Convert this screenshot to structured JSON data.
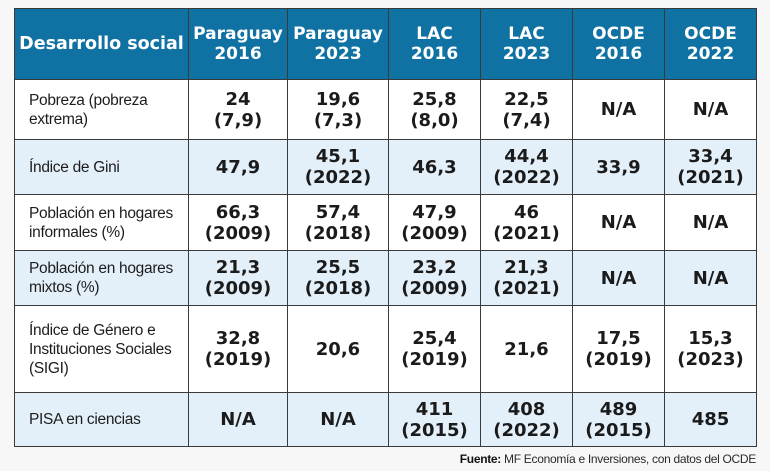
{
  "table": {
    "headers": [
      {
        "line1": "Desarrollo social",
        "line2": ""
      },
      {
        "line1": "Paraguay",
        "line2": "2016"
      },
      {
        "line1": "Paraguay",
        "line2": "2023"
      },
      {
        "line1": "LAC",
        "line2": "2016"
      },
      {
        "line1": "LAC",
        "line2": "2023"
      },
      {
        "line1": "OCDE",
        "line2": "2016"
      },
      {
        "line1": "OCDE",
        "line2": "2022"
      }
    ],
    "rows": [
      {
        "label": [
          "Pobreza (pobreza",
          "extrema)"
        ],
        "cells": [
          {
            "main": "24",
            "sub": "(7,9)"
          },
          {
            "main": "19,6",
            "sub": "(7,3)"
          },
          {
            "main": "25,8",
            "sub": "(8,0)"
          },
          {
            "main": "22,5",
            "sub": "(7,4)"
          },
          {
            "main": "N/A",
            "sub": ""
          },
          {
            "main": "N/A",
            "sub": ""
          }
        ]
      },
      {
        "label": [
          "Índice de Gini"
        ],
        "cells": [
          {
            "main": "47,9",
            "sub": ""
          },
          {
            "main": "45,1",
            "sub": "(2022)"
          },
          {
            "main": "46,3",
            "sub": ""
          },
          {
            "main": "44,4",
            "sub": "(2022)"
          },
          {
            "main": "33,9",
            "sub": ""
          },
          {
            "main": "33,4",
            "sub": "(2021)"
          }
        ]
      },
      {
        "label": [
          "Población en hogares",
          "informales (%)"
        ],
        "cells": [
          {
            "main": "66,3",
            "sub": "(2009)"
          },
          {
            "main": "57,4",
            "sub": "(2018)"
          },
          {
            "main": "47,9",
            "sub": "(2009)"
          },
          {
            "main": "46",
            "sub": "(2021)"
          },
          {
            "main": "N/A",
            "sub": ""
          },
          {
            "main": "N/A",
            "sub": ""
          }
        ]
      },
      {
        "label": [
          "Población en hogares",
          "mixtos (%)"
        ],
        "cells": [
          {
            "main": "21,3",
            "sub": "(2009)"
          },
          {
            "main": "25,5",
            "sub": "(2018)"
          },
          {
            "main": "23,2",
            "sub": "(2009)"
          },
          {
            "main": "21,3",
            "sub": "(2021)"
          },
          {
            "main": "N/A",
            "sub": ""
          },
          {
            "main": "N/A",
            "sub": ""
          }
        ]
      },
      {
        "label": [
          "Índice de Género e",
          "Instituciones Sociales",
          "(SIGI)"
        ],
        "cells": [
          {
            "main": "32,8",
            "sub": "(2019)"
          },
          {
            "main": "20,6",
            "sub": ""
          },
          {
            "main": "25,4",
            "sub": "(2019)"
          },
          {
            "main": "21,6",
            "sub": ""
          },
          {
            "main": "17,5",
            "sub": "(2019)"
          },
          {
            "main": "15,3",
            "sub": "(2023)"
          }
        ]
      },
      {
        "label": [
          "PISA en ciencias"
        ],
        "cells": [
          {
            "main": "N/A",
            "sub": ""
          },
          {
            "main": "N/A",
            "sub": ""
          },
          {
            "main": "411",
            "sub": "(2015)"
          },
          {
            "main": "408",
            "sub": "(2022)"
          },
          {
            "main": "489",
            "sub": "(2015)"
          },
          {
            "main": "485",
            "sub": ""
          }
        ]
      }
    ]
  },
  "source": {
    "label": "Fuente:",
    "text": " MF Economía e Inversiones, con datos del OCDE"
  },
  "colors": {
    "header_bg": "#0f72a3",
    "alt_row_bg": "#e3f0f9",
    "border": "#3a3a3a"
  }
}
